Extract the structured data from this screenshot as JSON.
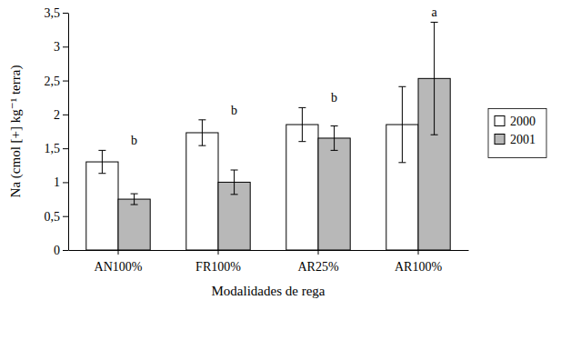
{
  "chart_data": {
    "type": "bar",
    "x_label": "Modalidades de rega",
    "y_label": "Na (cmol [+] kg⁻¹ terra)",
    "categories": [
      "AN100%",
      "FR100%",
      "AR25%",
      "AR100%"
    ],
    "series": [
      {
        "name": "2000",
        "color": "#ffffff",
        "values": [
          1.3,
          1.73,
          1.85,
          1.85
        ],
        "errors": [
          0.17,
          0.19,
          0.25,
          0.56
        ]
      },
      {
        "name": "2001",
        "color": "#b8b8b8",
        "values": [
          0.75,
          1.0,
          1.65,
          2.53
        ],
        "errors": [
          0.08,
          0.18,
          0.18,
          0.83
        ]
      }
    ],
    "annotations": [
      "b",
      "b",
      "b",
      "a"
    ],
    "ylim": [
      0,
      3.5
    ],
    "yticks": [
      0,
      {
        "value": 0.5,
        "label": "0,5"
      },
      1,
      {
        "value": 1.5,
        "label": "1,5"
      },
      2,
      {
        "value": 2.5,
        "label": "2,5"
      },
      3,
      {
        "value": 3.5,
        "label": "3,5"
      }
    ],
    "grid": false,
    "legend": "right"
  }
}
